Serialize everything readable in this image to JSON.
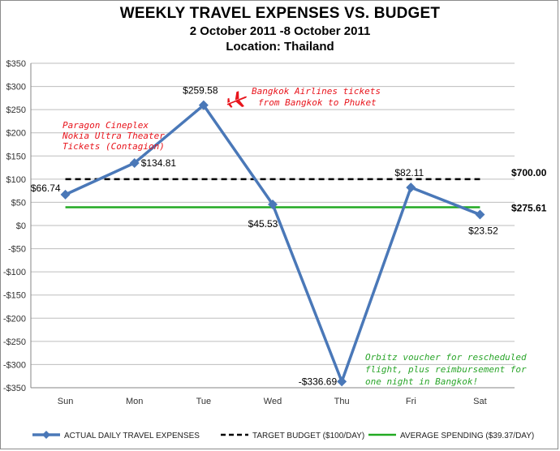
{
  "chart_data": {
    "type": "line",
    "title": "WEEKLY TRAVEL EXPENSES VS. BUDGET",
    "subtitle": "2 October 2011 -8 October 2011",
    "location": "Location:  Thailand",
    "categories": [
      "Sun",
      "Mon",
      "Tue",
      "Wed",
      "Thu",
      "Fri",
      "Sat"
    ],
    "ylim": [
      -350,
      350
    ],
    "ytick_step": 50,
    "grid": true,
    "legend_position": "bottom",
    "series": [
      {
        "name": "ACTUAL DAILY TRAVEL EXPENSES",
        "values": [
          66.74,
          134.81,
          259.58,
          45.53,
          -336.69,
          82.11,
          23.52
        ],
        "labels": [
          "$66.74",
          "$134.81",
          "$259.58",
          "$45.53",
          "-$336.69",
          "$82.11",
          "$23.52"
        ],
        "color": "#4a78b8"
      },
      {
        "name": "TARGET BUDGET ($100/DAY)",
        "value": 100,
        "end_label": "$700.00",
        "color": "#000000"
      },
      {
        "name": "AVERAGE SPENDING ($39.37/DAY)",
        "value": 39.37,
        "end_label": "$275.61",
        "color": "#22aa22"
      }
    ],
    "annotations": [
      {
        "lines": [
          "Paragon Cineplex",
          "Nokia Ultra Theater",
          "Tickets (Contagion)"
        ],
        "color": "#e8141c"
      },
      {
        "lines": [
          "Bangkok Airlines tickets",
          "from Bangkok to Phuket"
        ],
        "color": "#e8141c",
        "icon": "airplane-icon"
      },
      {
        "lines": [
          "Orbitz voucher for rescheduled",
          "flight, plus reimbursement for",
          "one night in Bangkok!"
        ],
        "color": "#2aa52a"
      }
    ]
  }
}
